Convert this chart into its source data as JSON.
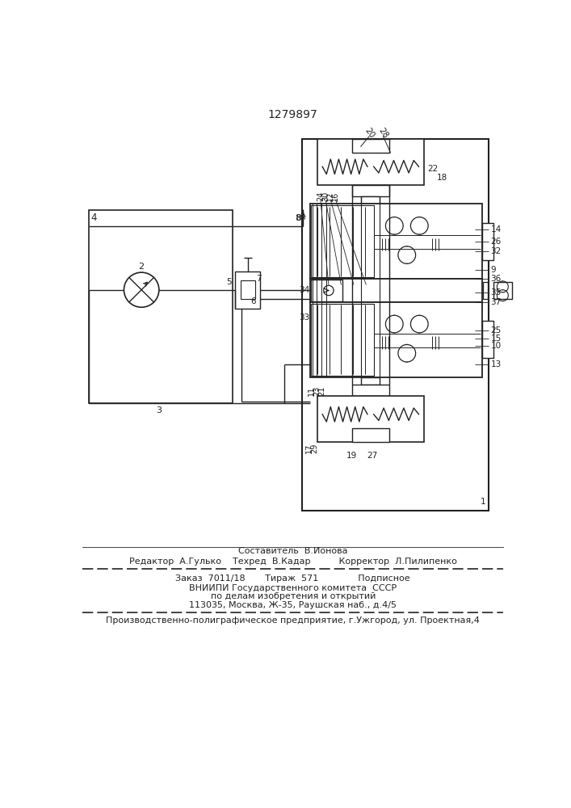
{
  "patent_number": "1279897",
  "composer": "Составитель  В.Ионова",
  "editor_line": "Редактор  А.Гулько    Техред  В.Кадар          Корректор  Л.Пилипенко",
  "footer1": "Заказ  7011/18       Тираж  571              Подписное",
  "footer2": "ВНИИПИ Государственного комитета  СССР",
  "footer3": "по делам изобретения и открытий",
  "footer4": "113035, Москва, Ж-35, Раушская наб., д.4/5",
  "footer5": "Производственно-полиграфическое предприятие, г.Ужгород, ул. Проектная,4",
  "lc": "#222222"
}
